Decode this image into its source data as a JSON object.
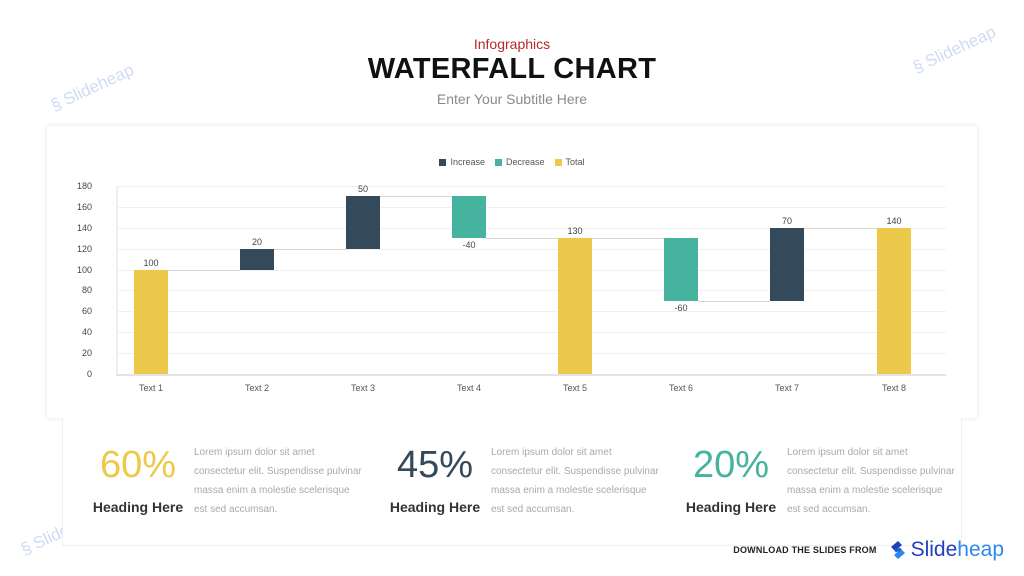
{
  "header": {
    "kicker": "Infographics",
    "title": "WATERFALL CHART",
    "subtitle": "Enter Your Subtitle Here"
  },
  "legend": [
    {
      "label": "Increase",
      "color": "#344a5a"
    },
    {
      "label": "Decrease",
      "color": "#45b39d"
    },
    {
      "label": "Total",
      "color": "#ecc94b"
    }
  ],
  "chart_data": {
    "type": "bar",
    "subtype": "waterfall",
    "title": "",
    "xlabel": "",
    "ylabel": "",
    "ylim": [
      0,
      180
    ],
    "yticks": [
      0,
      20,
      40,
      60,
      80,
      100,
      120,
      140,
      160,
      180
    ],
    "grid": true,
    "legend_position": "top",
    "categories": [
      "Text 1",
      "Text 2",
      "Text 3",
      "Text 4",
      "Text 5",
      "Text 6",
      "Text 7",
      "Text 8"
    ],
    "values": [
      100,
      20,
      50,
      -40,
      130,
      -60,
      70,
      140
    ],
    "kinds": [
      "total",
      "increase",
      "increase",
      "decrease",
      "total",
      "decrease",
      "increase",
      "total"
    ],
    "bar_ranges": [
      [
        0,
        100
      ],
      [
        100,
        120
      ],
      [
        120,
        170
      ],
      [
        130,
        170
      ],
      [
        0,
        130
      ],
      [
        70,
        130
      ],
      [
        70,
        140
      ],
      [
        0,
        140
      ]
    ],
    "labels": [
      "100",
      "20",
      "50",
      "-40",
      "130",
      "-60",
      "70",
      "140"
    ],
    "series": [
      {
        "name": "Increase",
        "values": [
          null,
          20,
          50,
          null,
          null,
          null,
          70,
          null
        ]
      },
      {
        "name": "Decrease",
        "values": [
          null,
          null,
          null,
          -40,
          null,
          -60,
          null,
          null
        ]
      },
      {
        "name": "Total",
        "values": [
          100,
          null,
          null,
          null,
          130,
          null,
          null,
          140
        ]
      }
    ]
  },
  "stats": [
    {
      "percent": "60%",
      "color": "#ecc94b",
      "heading": "Heading Here",
      "body": "Lorem ipsum dolor sit amet consectetur  elit. Suspendisse pulvinar massa enim a molestie scelerisque  est sed accumsan."
    },
    {
      "percent": "45%",
      "color": "#344a5a",
      "heading": "Heading Here",
      "body": "Lorem ipsum dolor sit amet consectetur  elit. Suspendisse pulvinar massa enim a molestie scelerisque  est sed accumsan."
    },
    {
      "percent": "20%",
      "color": "#45b39d",
      "heading": "Heading Here",
      "body": "Lorem ipsum dolor sit amet consectetur  elit. Suspendisse pulvinar massa enim a molestie scelerisque  est sed accumsan."
    }
  ],
  "footer": {
    "text": "DOWNLOAD THE SLIDES FROM",
    "brand_part1": "Slide",
    "brand_part2": "heap"
  },
  "watermark": "Slideheap"
}
